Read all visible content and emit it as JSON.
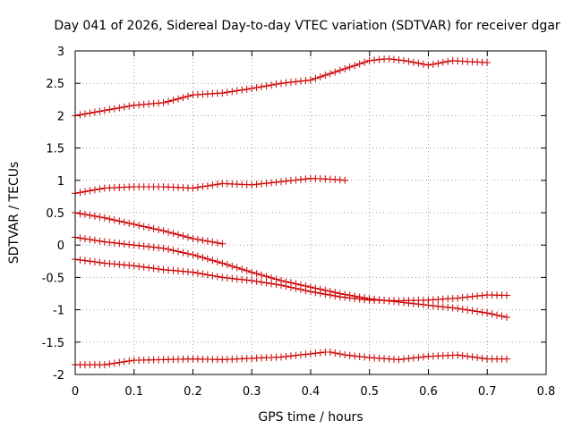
{
  "chart_data": {
    "type": "scatter",
    "title": "Day 041 of 2026, Sidereal Day-to-day VTEC variation (SDTVAR) for receiver dgar",
    "xlabel": "GPS time / hours",
    "ylabel": "SDTVAR / TECUs",
    "xlim": [
      0,
      0.8
    ],
    "ylim": [
      -2,
      3
    ],
    "xticks": [
      0,
      0.1,
      0.2,
      0.3,
      0.4,
      0.5,
      0.6,
      0.7,
      0.8
    ],
    "xtick_labels": [
      "0",
      "0.1",
      "0.2",
      "0.3",
      "0.4",
      "0.5",
      "0.6",
      "0.7",
      "0.8"
    ],
    "yticks": [
      -2,
      -1.5,
      -1,
      -0.5,
      0,
      0.5,
      1,
      1.5,
      2,
      2.5,
      3
    ],
    "ytick_labels": [
      "-2",
      "-1.5",
      "-1",
      "-0.5",
      "0",
      "0.5",
      "1",
      "1.5",
      "2",
      "2.5",
      "3"
    ],
    "grid": true,
    "marker": "+",
    "marker_color": "#cc0000",
    "x_step": 0.00833,
    "series": [
      {
        "name": "series-1",
        "x_start": 0.0,
        "x_end": 0.7,
        "anchors": [
          [
            0.0,
            2.0
          ],
          [
            0.05,
            2.08
          ],
          [
            0.1,
            2.16
          ],
          [
            0.15,
            2.2
          ],
          [
            0.2,
            2.32
          ],
          [
            0.25,
            2.35
          ],
          [
            0.3,
            2.42
          ],
          [
            0.35,
            2.5
          ],
          [
            0.4,
            2.55
          ],
          [
            0.45,
            2.7
          ],
          [
            0.5,
            2.85
          ],
          [
            0.53,
            2.88
          ],
          [
            0.56,
            2.85
          ],
          [
            0.6,
            2.78
          ],
          [
            0.64,
            2.85
          ],
          [
            0.7,
            2.82
          ]
        ]
      },
      {
        "name": "series-2",
        "x_start": 0.0,
        "x_end": 0.46,
        "anchors": [
          [
            0.0,
            0.8
          ],
          [
            0.05,
            0.88
          ],
          [
            0.1,
            0.9
          ],
          [
            0.15,
            0.9
          ],
          [
            0.2,
            0.88
          ],
          [
            0.25,
            0.95
          ],
          [
            0.3,
            0.93
          ],
          [
            0.35,
            0.98
          ],
          [
            0.4,
            1.03
          ],
          [
            0.43,
            1.02
          ],
          [
            0.46,
            1.0
          ]
        ]
      },
      {
        "name": "series-3",
        "x_start": 0.0,
        "x_end": 0.25,
        "anchors": [
          [
            0.0,
            0.5
          ],
          [
            0.05,
            0.42
          ],
          [
            0.1,
            0.32
          ],
          [
            0.15,
            0.22
          ],
          [
            0.2,
            0.1
          ],
          [
            0.25,
            0.02
          ]
        ]
      },
      {
        "name": "series-4",
        "x_start": 0.0,
        "x_end": 0.74,
        "anchors": [
          [
            0.0,
            0.12
          ],
          [
            0.05,
            0.05
          ],
          [
            0.1,
            0.0
          ],
          [
            0.15,
            -0.05
          ],
          [
            0.2,
            -0.15
          ],
          [
            0.25,
            -0.28
          ],
          [
            0.3,
            -0.42
          ],
          [
            0.35,
            -0.55
          ],
          [
            0.4,
            -0.65
          ],
          [
            0.45,
            -0.75
          ],
          [
            0.5,
            -0.83
          ],
          [
            0.55,
            -0.88
          ],
          [
            0.6,
            -0.93
          ],
          [
            0.65,
            -0.98
          ],
          [
            0.7,
            -1.05
          ],
          [
            0.74,
            -1.13
          ]
        ]
      },
      {
        "name": "series-5",
        "x_start": 0.0,
        "x_end": 0.74,
        "anchors": [
          [
            0.0,
            -0.22
          ],
          [
            0.05,
            -0.28
          ],
          [
            0.1,
            -0.32
          ],
          [
            0.15,
            -0.38
          ],
          [
            0.2,
            -0.42
          ],
          [
            0.25,
            -0.5
          ],
          [
            0.3,
            -0.55
          ],
          [
            0.35,
            -0.62
          ],
          [
            0.4,
            -0.72
          ],
          [
            0.45,
            -0.8
          ],
          [
            0.5,
            -0.85
          ],
          [
            0.55,
            -0.86
          ],
          [
            0.6,
            -0.85
          ],
          [
            0.65,
            -0.82
          ],
          [
            0.7,
            -0.77
          ],
          [
            0.74,
            -0.78
          ]
        ]
      },
      {
        "name": "series-6",
        "x_start": 0.0,
        "x_end": 0.74,
        "anchors": [
          [
            0.0,
            -1.85
          ],
          [
            0.05,
            -1.85
          ],
          [
            0.1,
            -1.78
          ],
          [
            0.15,
            -1.77
          ],
          [
            0.2,
            -1.76
          ],
          [
            0.25,
            -1.77
          ],
          [
            0.3,
            -1.75
          ],
          [
            0.35,
            -1.73
          ],
          [
            0.4,
            -1.68
          ],
          [
            0.43,
            -1.65
          ],
          [
            0.46,
            -1.7
          ],
          [
            0.5,
            -1.74
          ],
          [
            0.55,
            -1.77
          ],
          [
            0.6,
            -1.72
          ],
          [
            0.65,
            -1.7
          ],
          [
            0.7,
            -1.76
          ],
          [
            0.74,
            -1.76
          ]
        ]
      }
    ]
  }
}
